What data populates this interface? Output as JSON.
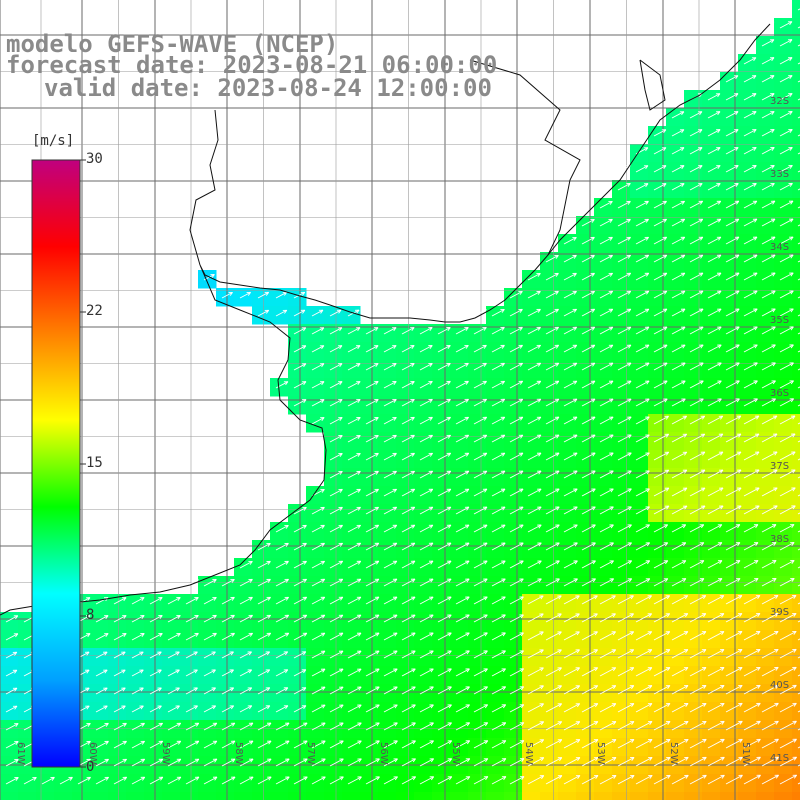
{
  "title": {
    "line1": "modelo GEFS-WAVE (NCEP)",
    "line2": "forecast date: 2023-08-21 06:00:00",
    "line3": "valid date: 2023-08-24 12:00:00"
  },
  "colorbar": {
    "unit": "[m/s]",
    "ticks": [
      "30",
      "22",
      "15",
      "8",
      "0"
    ],
    "tick_values": [
      30,
      22,
      15,
      8,
      0
    ],
    "min": 0,
    "max": 30,
    "colors": [
      "#0000ff",
      "#00a0ff",
      "#00ffff",
      "#00ff00",
      "#ffff00",
      "#ff8000",
      "#ff0000",
      "#c0007f"
    ]
  },
  "map": {
    "lat_labels": [
      "32S",
      "33S",
      "34S",
      "35S",
      "36S",
      "37S",
      "38S",
      "39S",
      "40S",
      "41S"
    ],
    "lon_labels": [
      "61W",
      "60W",
      "59W",
      "58W",
      "57W",
      "56W",
      "55W",
      "54W",
      "53W",
      "52W",
      "51W"
    ],
    "lon_range": [
      -61.5,
      -50.5
    ],
    "lat_range": [
      -31,
      -41.5
    ],
    "field": "wind speed with direction arrows",
    "arrow_direction": "toward northeast"
  }
}
